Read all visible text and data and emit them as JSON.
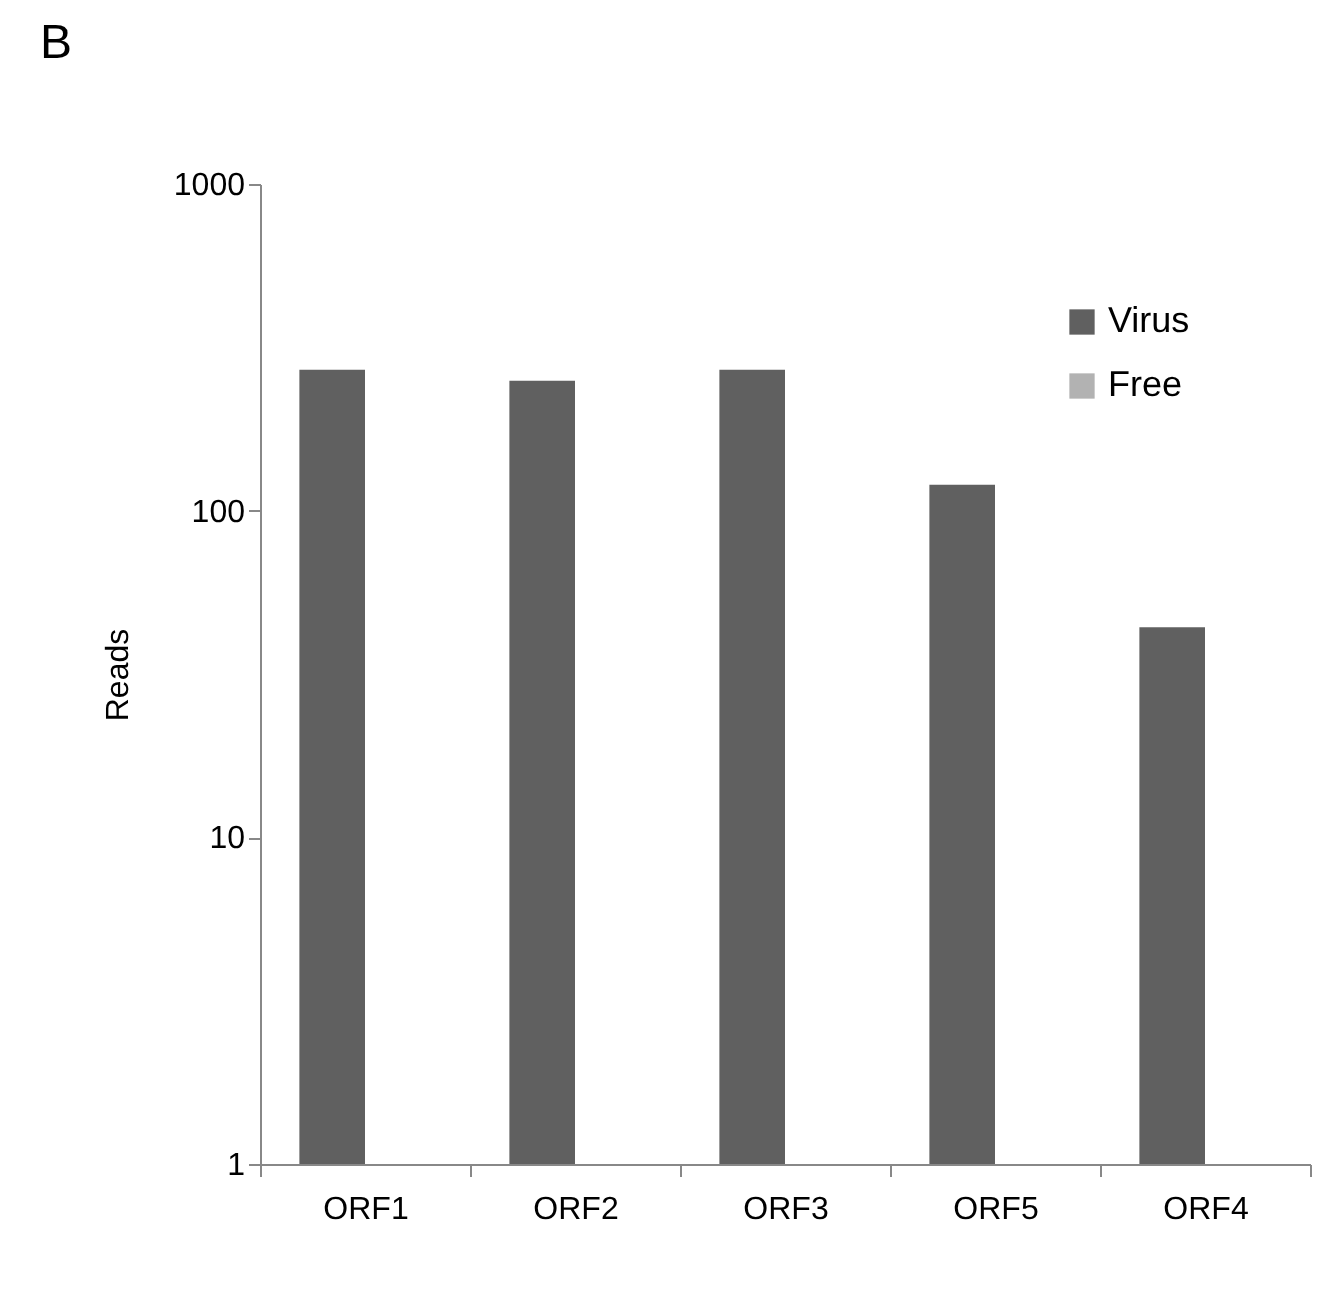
{
  "chart_data": {
    "type": "bar",
    "title": "B",
    "ylabel": "Reads",
    "categories": [
      "ORF1",
      "ORF2",
      "ORF3",
      "ORF5",
      "ORF4"
    ],
    "series": [
      {
        "name": "Virus",
        "color": "#606060",
        "values": [
          270,
          250,
          270,
          120,
          44
        ]
      },
      {
        "name": "Free",
        "color": "#b2b2b2",
        "values": [
          null,
          null,
          null,
          null,
          null
        ]
      }
    ],
    "log": "y",
    "ylim": [
      1,
      1000
    ],
    "yticks": [
      1,
      10,
      100,
      1000
    ],
    "grid": false,
    "legend": "top right"
  }
}
